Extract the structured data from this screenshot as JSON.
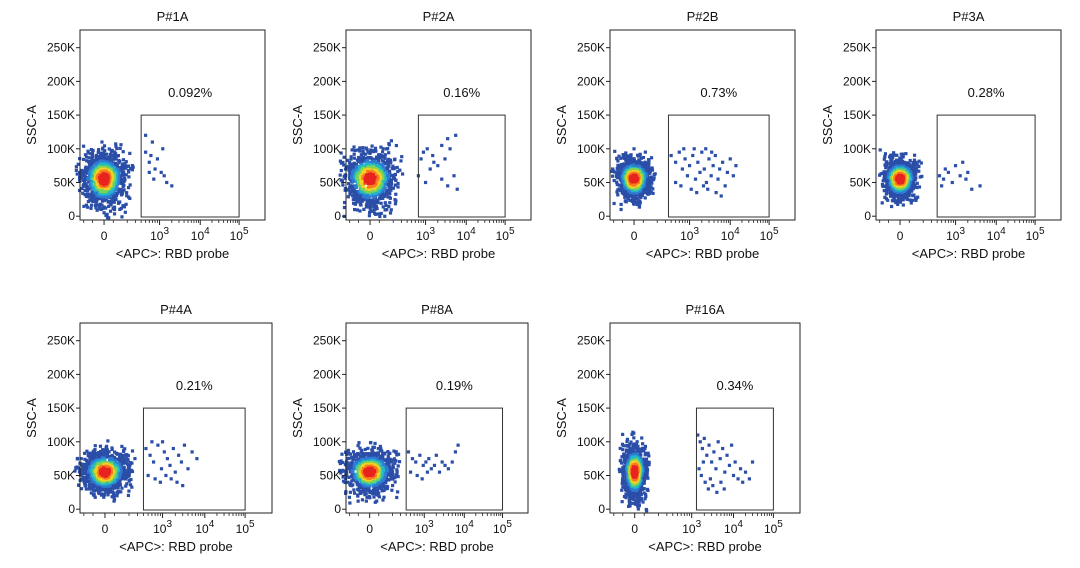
{
  "chart_data": [
    {
      "type": "scatter",
      "title": "P#1A",
      "xlabel": "<APC>: RBD probe",
      "ylabel": "SSC-A",
      "x_scale": "biexponential",
      "y_ticks": [
        "250K",
        "200K",
        "150K",
        "100K",
        "50K",
        "0"
      ],
      "x_ticks": [
        "0",
        "10^3",
        "10^4",
        "10^5"
      ],
      "ylim": [
        0,
        262144
      ],
      "gate": {
        "label": "0.092%",
        "x_range": [
          400,
          100000
        ],
        "y_range": [
          0,
          150000
        ]
      },
      "population": {
        "x_center": 0,
        "y_center": 55000,
        "x_spread": "-200 to 250",
        "y_range": [
          20000,
          130000
        ]
      },
      "scatter_points": [
        [
          500,
          120000
        ],
        [
          500,
          95000
        ],
        [
          700,
          110000
        ],
        [
          600,
          80000
        ],
        [
          900,
          85000
        ],
        [
          800,
          70000
        ],
        [
          1100,
          65000
        ],
        [
          1300,
          60000
        ],
        [
          2000,
          45000
        ],
        [
          1500,
          50000
        ],
        [
          600,
          65000
        ],
        [
          750,
          55000
        ],
        [
          650,
          90000
        ],
        [
          1200,
          100000
        ]
      ],
      "grid": false
    },
    {
      "type": "scatter",
      "title": "P#2A",
      "xlabel": "<APC>: RBD probe",
      "ylabel": "SSC-A",
      "x_scale": "biexponential",
      "y_ticks": [
        "250K",
        "200K",
        "150K",
        "100K",
        "50K",
        "0"
      ],
      "x_ticks": [
        "0",
        "10^3",
        "10^4",
        "10^5"
      ],
      "ylim": [
        0,
        262144
      ],
      "gate": {
        "label": "0.16%",
        "x_range": [
          700,
          100000
        ],
        "y_range": [
          0,
          150000
        ]
      },
      "population": {
        "x_center": 0,
        "y_center": 55000,
        "x_spread": "-200 to 400",
        "y_range": [
          20000,
          130000
        ]
      },
      "scatter_points": [
        [
          900,
          95000
        ],
        [
          1100,
          100000
        ],
        [
          1500,
          90000
        ],
        [
          2500,
          105000
        ],
        [
          3500,
          115000
        ],
        [
          5500,
          120000
        ],
        [
          4000,
          100000
        ],
        [
          3000,
          85000
        ],
        [
          2000,
          75000
        ],
        [
          1300,
          70000
        ],
        [
          5000,
          60000
        ],
        [
          2500,
          55000
        ],
        [
          1000,
          50000
        ],
        [
          3500,
          45000
        ],
        [
          6000,
          40000
        ],
        [
          1600,
          80000
        ],
        [
          700,
          60000
        ],
        [
          800,
          85000
        ]
      ],
      "grid": false
    },
    {
      "type": "scatter",
      "title": "P#2B",
      "xlabel": "<APC>: RBD probe",
      "ylabel": "SSC-A",
      "x_scale": "biexponential",
      "y_ticks": [
        "250K",
        "200K",
        "150K",
        "100K",
        "50K",
        "0"
      ],
      "x_ticks": [
        "0",
        "10^3",
        "10^4",
        "10^5"
      ],
      "ylim": [
        0,
        262144
      ],
      "gate": {
        "label": "0.73%",
        "x_range": [
          350,
          100000
        ],
        "y_range": [
          0,
          150000
        ]
      },
      "population": {
        "x_center": 0,
        "y_center": 55000,
        "x_spread": "-150 to 150",
        "y_range": [
          20000,
          105000
        ]
      },
      "scatter_points": [
        [
          400,
          90000
        ],
        [
          500,
          80000
        ],
        [
          600,
          95000
        ],
        [
          700,
          70000
        ],
        [
          800,
          85000
        ],
        [
          900,
          60000
        ],
        [
          1000,
          75000
        ],
        [
          1200,
          90000
        ],
        [
          1400,
          55000
        ],
        [
          1600,
          80000
        ],
        [
          1800,
          65000
        ],
        [
          2000,
          95000
        ],
        [
          2300,
          70000
        ],
        [
          2600,
          50000
        ],
        [
          3000,
          85000
        ],
        [
          3400,
          60000
        ],
        [
          3800,
          75000
        ],
        [
          4300,
          90000
        ],
        [
          5000,
          55000
        ],
        [
          5500,
          70000
        ],
        [
          6500,
          80000
        ],
        [
          7500,
          45000
        ],
        [
          8500,
          65000
        ],
        [
          10000,
          85000
        ],
        [
          12000,
          60000
        ],
        [
          14000,
          75000
        ],
        [
          500,
          50000
        ],
        [
          650,
          45000
        ],
        [
          1100,
          40000
        ],
        [
          1500,
          35000
        ],
        [
          2200,
          45000
        ],
        [
          2800,
          40000
        ],
        [
          4500,
          35000
        ],
        [
          6000,
          30000
        ],
        [
          750,
          100000
        ],
        [
          1300,
          100000
        ],
        [
          2500,
          100000
        ],
        [
          3500,
          95000
        ]
      ],
      "grid": false
    },
    {
      "type": "scatter",
      "title": "P#3A",
      "xlabel": "<APC>: RBD probe",
      "ylabel": "SSC-A",
      "x_scale": "biexponential",
      "y_ticks": [
        "250K",
        "200K",
        "150K",
        "100K",
        "50K",
        "0"
      ],
      "x_ticks": [
        "0",
        "10^3",
        "10^4",
        "10^5"
      ],
      "ylim": [
        0,
        262144
      ],
      "gate": {
        "label": "0.28%",
        "x_range": [
          400,
          100000
        ],
        "y_range": [
          0,
          150000
        ]
      },
      "population": {
        "x_center": 0,
        "y_center": 55000,
        "x_spread": "-150 to 150",
        "y_range": [
          25000,
          105000
        ]
      },
      "scatter_points": [
        [
          450,
          60000
        ],
        [
          550,
          55000
        ],
        [
          700,
          65000
        ],
        [
          850,
          50000
        ],
        [
          1000,
          75000
        ],
        [
          1300,
          60000
        ],
        [
          1500,
          80000
        ],
        [
          1800,
          55000
        ],
        [
          2000,
          65000
        ],
        [
          2500,
          40000
        ],
        [
          4000,
          45000
        ],
        [
          600,
          70000
        ],
        [
          500,
          45000
        ]
      ],
      "grid": false
    },
    {
      "type": "scatter",
      "title": "P#4A",
      "xlabel": "<APC>: RBD probe",
      "ylabel": "SSC-A",
      "x_scale": "biexponential",
      "y_ticks": [
        "250K",
        "200K",
        "150K",
        "100K",
        "50K",
        "0"
      ],
      "x_ticks": [
        "0",
        "10^3",
        "10^4",
        "10^5"
      ],
      "ylim": [
        0,
        262144
      ],
      "gate": {
        "label": "0.21%",
        "x_range": [
          400,
          100000
        ],
        "y_range": [
          0,
          150000
        ]
      },
      "population": {
        "x_center": 0,
        "y_center": 55000,
        "x_spread": "-150 to 300",
        "y_range": [
          20000,
          105000
        ]
      },
      "scatter_points": [
        [
          450,
          90000
        ],
        [
          550,
          80000
        ],
        [
          650,
          70000
        ],
        [
          800,
          95000
        ],
        [
          950,
          60000
        ],
        [
          1100,
          85000
        ],
        [
          1300,
          75000
        ],
        [
          1500,
          65000
        ],
        [
          1800,
          90000
        ],
        [
          2000,
          55000
        ],
        [
          2400,
          80000
        ],
        [
          2800,
          70000
        ],
        [
          3300,
          95000
        ],
        [
          4000,
          60000
        ],
        [
          5000,
          85000
        ],
        [
          6500,
          75000
        ],
        [
          500,
          50000
        ],
        [
          700,
          45000
        ],
        [
          900,
          40000
        ],
        [
          1200,
          50000
        ],
        [
          1600,
          45000
        ],
        [
          2200,
          40000
        ],
        [
          3000,
          35000
        ],
        [
          600,
          100000
        ],
        [
          1000,
          100000
        ]
      ],
      "grid": false
    },
    {
      "type": "scatter",
      "title": "P#8A",
      "xlabel": "<APC>: RBD probe",
      "ylabel": "SSC-A",
      "x_scale": "biexponential",
      "y_ticks": [
        "250K",
        "200K",
        "150K",
        "100K",
        "50K",
        "0"
      ],
      "x_ticks": [
        "0",
        "10^3",
        "10^4",
        "10^5"
      ],
      "ylim": [
        0,
        262144
      ],
      "gate": {
        "label": "0.19%",
        "x_range": [
          400,
          100000
        ],
        "y_range": [
          0,
          150000
        ]
      },
      "population": {
        "x_center": 0,
        "y_center": 55000,
        "x_spread": "-250 to 350",
        "y_range": [
          20000,
          105000
        ]
      },
      "scatter_points": [
        [
          450,
          85000
        ],
        [
          550,
          75000
        ],
        [
          650,
          70000
        ],
        [
          800,
          80000
        ],
        [
          950,
          65000
        ],
        [
          1100,
          70000
        ],
        [
          1300,
          75000
        ],
        [
          1500,
          60000
        ],
        [
          1800,
          65000
        ],
        [
          2000,
          80000
        ],
        [
          2400,
          55000
        ],
        [
          2800,
          70000
        ],
        [
          3300,
          65000
        ],
        [
          4000,
          60000
        ],
        [
          5000,
          70000
        ],
        [
          6000,
          85000
        ],
        [
          7000,
          95000
        ],
        [
          500,
          55000
        ],
        [
          700,
          50000
        ],
        [
          900,
          45000
        ],
        [
          1200,
          55000
        ]
      ],
      "grid": false
    },
    {
      "type": "scatter",
      "title": "P#16A",
      "xlabel": "<APC>: RBD probe",
      "ylabel": "SSC-A",
      "x_scale": "biexponential",
      "y_ticks": [
        "250K",
        "200K",
        "150K",
        "100K",
        "50K",
        "0"
      ],
      "x_ticks": [
        "0",
        "10^3",
        "10^4",
        "10^5"
      ],
      "ylim": [
        0,
        262144
      ],
      "gate": {
        "label": "0.34%",
        "x_range": [
          1300,
          100000
        ],
        "y_range": [
          0,
          150000
        ]
      },
      "population": {
        "x_center": 0,
        "y_center": 55000,
        "x_spread": "-100 to 100",
        "y_range": [
          15000,
          125000
        ]
      },
      "scatter_points": [
        [
          1400,
          110000
        ],
        [
          1600,
          100000
        ],
        [
          1800,
          90000
        ],
        [
          2000,
          105000
        ],
        [
          2300,
          80000
        ],
        [
          2600,
          95000
        ],
        [
          3000,
          70000
        ],
        [
          3400,
          85000
        ],
        [
          3800,
          60000
        ],
        [
          4300,
          100000
        ],
        [
          4800,
          75000
        ],
        [
          5500,
          90000
        ],
        [
          6200,
          55000
        ],
        [
          7000,
          80000
        ],
        [
          8000,
          65000
        ],
        [
          9000,
          95000
        ],
        [
          10000,
          50000
        ],
        [
          11000,
          70000
        ],
        [
          13000,
          45000
        ],
        [
          15000,
          60000
        ],
        [
          17000,
          40000
        ],
        [
          20000,
          55000
        ],
        [
          25000,
          45000
        ],
        [
          30000,
          70000
        ],
        [
          1500,
          60000
        ],
        [
          1700,
          50000
        ],
        [
          2100,
          40000
        ],
        [
          2500,
          30000
        ],
        [
          3200,
          35000
        ],
        [
          4000,
          25000
        ],
        [
          5000,
          40000
        ],
        [
          6000,
          30000
        ],
        [
          1900,
          70000
        ],
        [
          2800,
          45000
        ]
      ],
      "grid": false
    }
  ]
}
